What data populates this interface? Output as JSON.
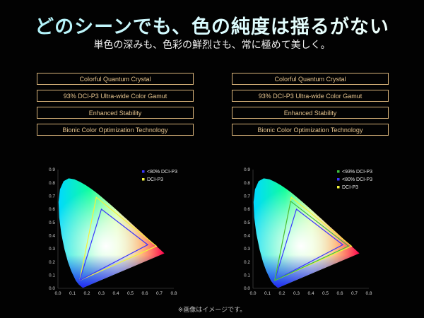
{
  "header": {
    "title": "どのシーンでも、色の純度は揺るがない",
    "subtitle": "単色の深みも、色彩の鮮烈さも、常に極めて美しく。"
  },
  "features_left": [
    "Colorful Quantum Crystal",
    "93% DCI-P3 Ultra-wide Color Gamut",
    "Enhanced Stability",
    "Bionic Color Optimization Technology"
  ],
  "features_right": [
    "Colorful Quantum Crystal",
    "93% DCI-P3 Ultra-wide Color Gamut",
    "Enhanced Stability",
    "Bionic Color Optimization Technology"
  ],
  "chart_data": [
    {
      "type": "scatter",
      "xlim": [
        0,
        0.8
      ],
      "ylim": [
        0,
        0.9
      ],
      "x_ticks": [
        "0.0",
        "0.1",
        "0.2",
        "0.3",
        "0.4",
        "0.5",
        "0.6",
        "0.7",
        "0.8"
      ],
      "y_ticks": [
        "0.0",
        "0.1",
        "0.2",
        "0.3",
        "0.4",
        "0.5",
        "0.6",
        "0.7",
        "0.8",
        "0.9"
      ],
      "legend_position": "top-right",
      "series": [
        {
          "name": "<80% DCI-P3",
          "color": "#3a35ff",
          "points": [
            [
              0.62,
              0.33
            ],
            [
              0.3,
              0.6
            ],
            [
              0.15,
              0.06
            ]
          ]
        },
        {
          "name": "DCI-P3",
          "color": "#f3f33a",
          "points": [
            [
              0.68,
              0.32
            ],
            [
              0.265,
              0.69
            ],
            [
              0.15,
              0.06
            ]
          ]
        }
      ]
    },
    {
      "type": "scatter",
      "xlim": [
        0,
        0.8
      ],
      "ylim": [
        0,
        0.9
      ],
      "x_ticks": [
        "0.0",
        "0.1",
        "0.2",
        "0.3",
        "0.4",
        "0.5",
        "0.6",
        "0.7",
        "0.8"
      ],
      "y_ticks": [
        "0.0",
        "0.1",
        "0.2",
        "0.3",
        "0.4",
        "0.5",
        "0.6",
        "0.7",
        "0.8",
        "0.9"
      ],
      "legend_position": "top-right",
      "series": [
        {
          "name": "<93% DCI-P3",
          "color": "#3fbf3f",
          "points": [
            [
              0.66,
              0.32
            ],
            [
              0.26,
              0.66
            ],
            [
              0.15,
              0.06
            ]
          ]
        },
        {
          "name": "<80% DCI-P3",
          "color": "#3a35ff",
          "points": [
            [
              0.62,
              0.33
            ],
            [
              0.3,
              0.6
            ],
            [
              0.15,
              0.06
            ]
          ]
        },
        {
          "name": "DCI-P3",
          "color": "#f3f33a",
          "points": [
            [
              0.68,
              0.32
            ],
            [
              0.265,
              0.69
            ],
            [
              0.15,
              0.06
            ]
          ]
        }
      ]
    }
  ],
  "caption": "※画像はイメージです。"
}
